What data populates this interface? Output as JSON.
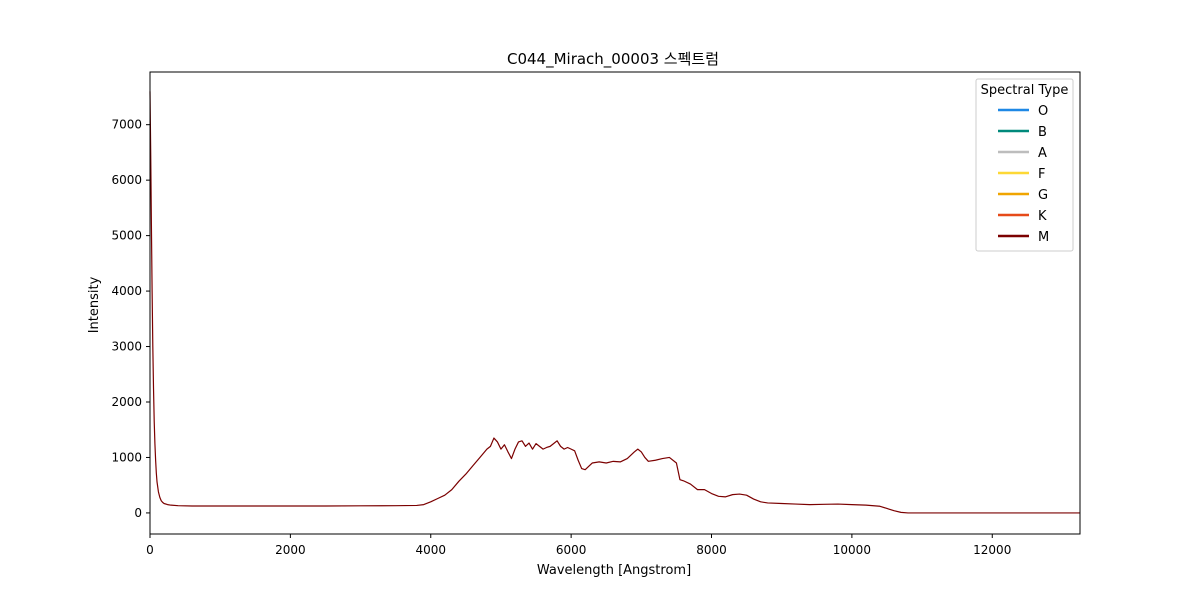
{
  "chart_data": {
    "type": "line",
    "title": "C044_Mirach_00003 스펙트럼",
    "xlabel": "Wavelength [Angstrom]",
    "ylabel": "Intensity",
    "xlim": [
      0,
      13250
    ],
    "ylim": [
      -380,
      7950
    ],
    "xticks": [
      0,
      2000,
      4000,
      6000,
      8000,
      10000,
      12000
    ],
    "yticks": [
      0,
      1000,
      2000,
      3000,
      4000,
      5000,
      6000,
      7000
    ],
    "grid": false,
    "legend": {
      "title": "Spectral Type",
      "placement": "top-right",
      "entries": [
        {
          "label": "O",
          "color": "#1e88e5"
        },
        {
          "label": "B",
          "color": "#00897b"
        },
        {
          "label": "A",
          "color": "#bdbdbd"
        },
        {
          "label": "F",
          "color": "#fdd835"
        },
        {
          "label": "G",
          "color": "#f0a500"
        },
        {
          "label": "K",
          "color": "#e64a19"
        },
        {
          "label": "M",
          "color": "#7b0000"
        }
      ]
    },
    "series": [
      {
        "color": "#7b0000",
        "x": [
          0,
          10,
          20,
          30,
          40,
          50,
          60,
          70,
          80,
          90,
          100,
          120,
          140,
          160,
          180,
          200,
          250,
          300,
          400,
          600,
          1000,
          1500,
          2000,
          2500,
          3000,
          3500,
          3800,
          3900,
          4000,
          4100,
          4200,
          4300,
          4400,
          4500,
          4600,
          4700,
          4800,
          4850,
          4900,
          4950,
          5000,
          5050,
          5100,
          5150,
          5200,
          5250,
          5300,
          5350,
          5400,
          5450,
          5500,
          5550,
          5600,
          5650,
          5700,
          5750,
          5800,
          5850,
          5900,
          5950,
          6000,
          6050,
          6100,
          6150,
          6200,
          6300,
          6400,
          6500,
          6600,
          6700,
          6800,
          6900,
          6950,
          7000,
          7050,
          7100,
          7200,
          7300,
          7400,
          7500,
          7550,
          7600,
          7700,
          7800,
          7900,
          8000,
          8100,
          8200,
          8300,
          8400,
          8500,
          8600,
          8700,
          8800,
          9000,
          9200,
          9400,
          9600,
          9800,
          10000,
          10200,
          10400,
          10500,
          10600,
          10700,
          10800,
          11000,
          12000,
          13250
        ],
        "y": [
          7600,
          6500,
          5200,
          4000,
          3000,
          2250,
          1650,
          1250,
          950,
          720,
          560,
          380,
          280,
          220,
          190,
          170,
          150,
          140,
          130,
          125,
          125,
          125,
          125,
          125,
          128,
          130,
          135,
          150,
          200,
          260,
          320,
          420,
          570,
          700,
          850,
          1000,
          1150,
          1200,
          1350,
          1280,
          1150,
          1230,
          1100,
          980,
          1150,
          1280,
          1300,
          1200,
          1260,
          1150,
          1250,
          1200,
          1150,
          1180,
          1200,
          1250,
          1300,
          1200,
          1150,
          1180,
          1150,
          1120,
          950,
          800,
          780,
          900,
          920,
          900,
          930,
          920,
          980,
          1100,
          1150,
          1100,
          1000,
          930,
          950,
          980,
          1000,
          900,
          600,
          580,
          520,
          420,
          420,
          350,
          300,
          290,
          330,
          340,
          320,
          250,
          200,
          180,
          170,
          160,
          150,
          155,
          160,
          150,
          140,
          120,
          80,
          40,
          10,
          0,
          0,
          0,
          0
        ]
      }
    ]
  }
}
